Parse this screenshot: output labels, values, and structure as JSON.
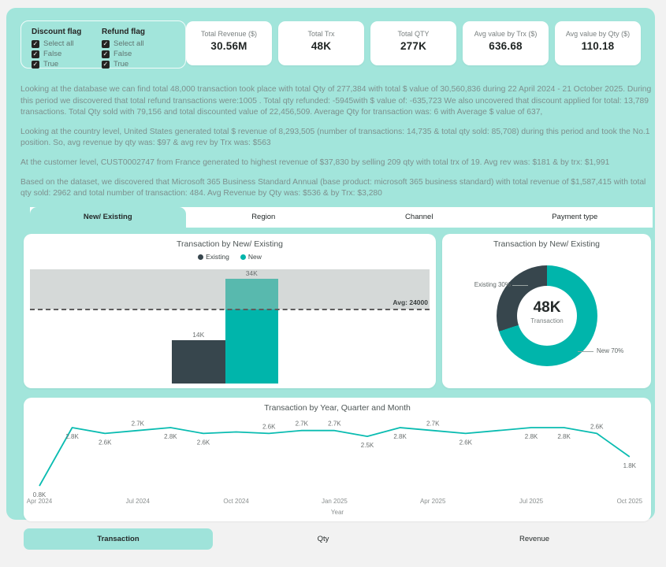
{
  "filters": {
    "discount": {
      "title": "Discount flag",
      "options": [
        "Select all",
        "False",
        "True"
      ],
      "checked": [
        true,
        true,
        true
      ]
    },
    "refund": {
      "title": "Refund flag",
      "options": [
        "Select all",
        "False",
        "True"
      ],
      "checked": [
        true,
        true,
        true
      ]
    }
  },
  "kpis": [
    {
      "label": "Total Revenue ($)",
      "value": "30.56M"
    },
    {
      "label": "Total Trx",
      "value": "48K"
    },
    {
      "label": "Total QTY",
      "value": "277K"
    },
    {
      "label": "Avg value by Trx ($)",
      "value": "636.68"
    },
    {
      "label": "Avg value by Qty ($)",
      "value": "110.18"
    }
  ],
  "narrative": {
    "p1": "Looking at the database we can find total 48,000 transaction took place with total Qty of 277,384 with total $ value of 30,560,836 during 22 April 2024 - 21 October 2025.  During this period we discovered that total refund transactions were:1005  . Total qty refunded: -5945with $ value of: -635,723 We also uncovered that discount applied for total: 13,789 transactions. Total Qty sold with 79,156 and total discounted value of 22,456,509. Average Qty for transaction was: 6 with Average $ value of 637,",
    "p2": "Looking at the country level, United States generated total $ revenue of 8,293,505 (number of transactions: 14,735 & total qty sold: 85,708) during this period and took the No.1 position. So, avg revenue by qty was: $97 & avg rev by Trx was: $563",
    "p3": "At the customer level, CUST0002747 from France generated to highest revenue of $37,830 by selling 209 qty with total trx of 19. Avg rev was: $181 & by trx: $1,991",
    "p4": "Based on the dataset, we discovered that Microsoft 365 Business Standard Annual (base product: microsoft 365 business standard)  with total revenue of $1,587,415 with total qty sold: 2962 and total number of transaction: 484. Avg Revenue by Qty was: $536 & by Trx: $3,280"
  },
  "tabs": {
    "items": [
      "New/ Existing",
      "Region",
      "Channel",
      "Payment type"
    ],
    "active": 0
  },
  "bottom_tabs": {
    "items": [
      "Transaction",
      "Qty",
      "Revenue"
    ],
    "active": 0
  },
  "colors": {
    "canvas_teal": "#a2e5db",
    "accent_teal": "#00b5ab",
    "dark_slate": "#37464d",
    "band_grey": "#d5d9d8",
    "muted_bar_teal": "#58b9ae",
    "line_teal": "#0abcb1"
  },
  "chart_data": [
    {
      "type": "bar",
      "title": "Transaction by New/ Existing",
      "categories": [
        "Existing",
        "New"
      ],
      "values": [
        14000,
        34000
      ],
      "value_labels": [
        "14K",
        "34K"
      ],
      "colors": [
        "#37464d",
        "#00b5ab"
      ],
      "muted_color": "#58b9ae",
      "avg_line": 24000,
      "avg_label": "Avg: 24000",
      "ymax": 37000,
      "legend_position": "top"
    },
    {
      "type": "pie",
      "title": "Transaction by New/ Existing",
      "center_value": "48K",
      "center_label": "Transaction",
      "slices": [
        {
          "label": "New",
          "pct": 70,
          "color": "#00b5ab"
        },
        {
          "label": "Existing",
          "pct": 30,
          "color": "#37464d"
        }
      ],
      "callouts": [
        "Existing 30%",
        "New 70%"
      ]
    },
    {
      "type": "line",
      "title": "Transaction by Year, Quarter and Month",
      "xlabel": "Year",
      "color": "#0abcb1",
      "x": [
        "Apr 2024",
        "May 2024",
        "Jun 2024",
        "Jul 2024",
        "Aug 2024",
        "Sep 2024",
        "Oct 2024",
        "Nov 2024",
        "Dec 2024",
        "Jan 2025",
        "Feb 2025",
        "Mar 2025",
        "Apr 2025",
        "May 2025",
        "Jun 2025",
        "Jul 2025",
        "Aug 2025",
        "Sep 2025",
        "Oct 2025"
      ],
      "values": [
        800,
        2800,
        2600,
        2700,
        2800,
        2600,
        2650,
        2600,
        2700,
        2700,
        2500,
        2800,
        2700,
        2600,
        2700,
        2800,
        2800,
        2600,
        1800
      ],
      "point_labels": [
        "0.8K",
        "2.8K",
        "2.6K",
        "2.7K",
        "2.8K",
        "2.6K",
        "",
        "2.6K",
        "2.7K",
        "2.7K",
        "2.5K",
        "2.8K",
        "2.7K",
        "2.6K",
        "",
        "2.8K",
        "2.8K",
        "2.6K",
        "1.8K"
      ],
      "label_pos": [
        "below",
        "below",
        "below",
        "above",
        "below",
        "below",
        "none",
        "above",
        "above",
        "above",
        "below",
        "below",
        "above",
        "below",
        "none",
        "below",
        "below",
        "above",
        "below"
      ],
      "tick_indices": [
        0,
        3,
        6,
        9,
        12,
        15,
        18
      ],
      "ylim": [
        0,
        3000
      ]
    }
  ]
}
